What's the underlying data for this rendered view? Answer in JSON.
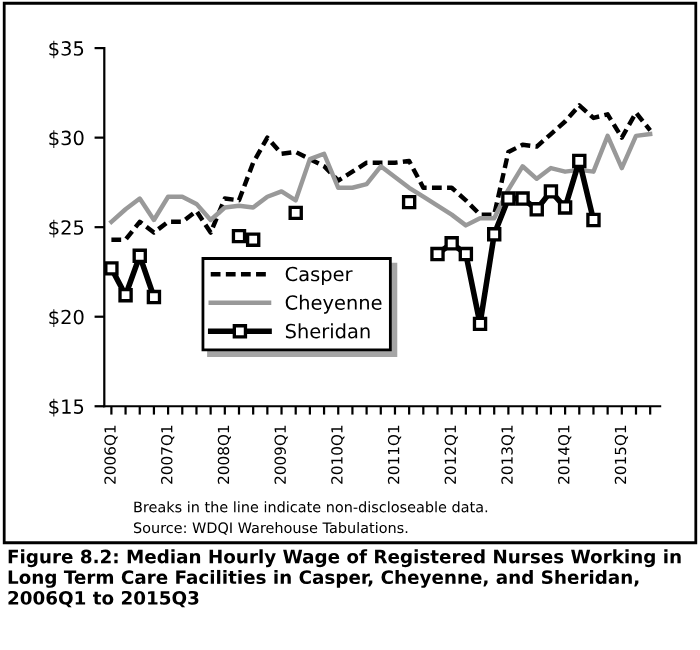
{
  "chart_data": {
    "type": "line",
    "title": "Figure 8.2: Median Hourly Wage of Registered Nurses Working in Long Term Care Facilities in Casper, Cheyenne, and Sheridan, 2006Q1 to 2015Q3",
    "categories": [
      "2006Q1",
      null,
      null,
      null,
      "2007Q1",
      null,
      null,
      null,
      "2008Q1",
      null,
      null,
      null,
      "2009Q1",
      null,
      null,
      null,
      "2010Q1",
      null,
      null,
      null,
      "2011Q1",
      null,
      null,
      null,
      "2012Q1",
      null,
      null,
      null,
      "2013Q1",
      null,
      null,
      null,
      "2014Q1",
      null,
      null,
      null,
      "2015Q1",
      null,
      null
    ],
    "series": [
      {
        "name": "Casper",
        "color": "#000000",
        "line_style": "dashed",
        "marker": "none",
        "values": [
          24.3,
          24.3,
          25.3,
          24.7,
          25.3,
          25.3,
          25.9,
          24.7,
          26.6,
          26.5,
          28.6,
          30.0,
          29.1,
          29.2,
          28.8,
          28.4,
          27.6,
          28.1,
          28.6,
          28.6,
          28.6,
          28.7,
          27.2,
          27.2,
          27.2,
          26.5,
          25.7,
          25.7,
          29.2,
          29.6,
          29.5,
          30.2,
          30.9,
          31.8,
          31.1,
          31.3,
          30.0,
          31.4,
          30.4
        ]
      },
      {
        "name": "Cheyenne",
        "color": "#999999",
        "line_style": "solid",
        "marker": "none",
        "values": [
          25.3,
          26.0,
          26.6,
          25.4,
          26.7,
          26.7,
          26.3,
          25.4,
          26.1,
          26.2,
          26.1,
          26.7,
          27.0,
          26.5,
          28.8,
          29.1,
          27.2,
          27.2,
          27.4,
          28.4,
          27.8,
          27.2,
          26.7,
          26.2,
          25.7,
          25.1,
          25.5,
          25.5,
          27.1,
          28.4,
          27.7,
          28.3,
          28.1,
          28.2,
          28.1,
          30.1,
          28.3,
          30.1,
          30.2
        ]
      },
      {
        "name": "Sheridan",
        "color": "#000000",
        "line_style": "solid",
        "marker": "square",
        "values": [
          22.7,
          21.2,
          23.4,
          21.1,
          null,
          null,
          null,
          null,
          null,
          24.5,
          24.3,
          null,
          null,
          25.8,
          null,
          null,
          null,
          null,
          null,
          null,
          null,
          26.4,
          null,
          23.5,
          24.1,
          23.5,
          19.6,
          24.6,
          26.6,
          26.6,
          26.0,
          27.0,
          26.1,
          28.7,
          25.4,
          null,
          null,
          null,
          null
        ]
      }
    ],
    "ylim": [
      15,
      35
    ],
    "yticks": [
      {
        "value": 15,
        "label": "$15"
      },
      {
        "value": 20,
        "label": "$20"
      },
      {
        "value": 25,
        "label": "$25"
      },
      {
        "value": 30,
        "label": "$30"
      },
      {
        "value": 35,
        "label": "$35"
      }
    ],
    "grid": false,
    "legend": "bottom left",
    "annotations": [
      "Breaks in the line indicate non-discloseable data.",
      "Source: WDQI Warehouse Tabulations."
    ]
  }
}
